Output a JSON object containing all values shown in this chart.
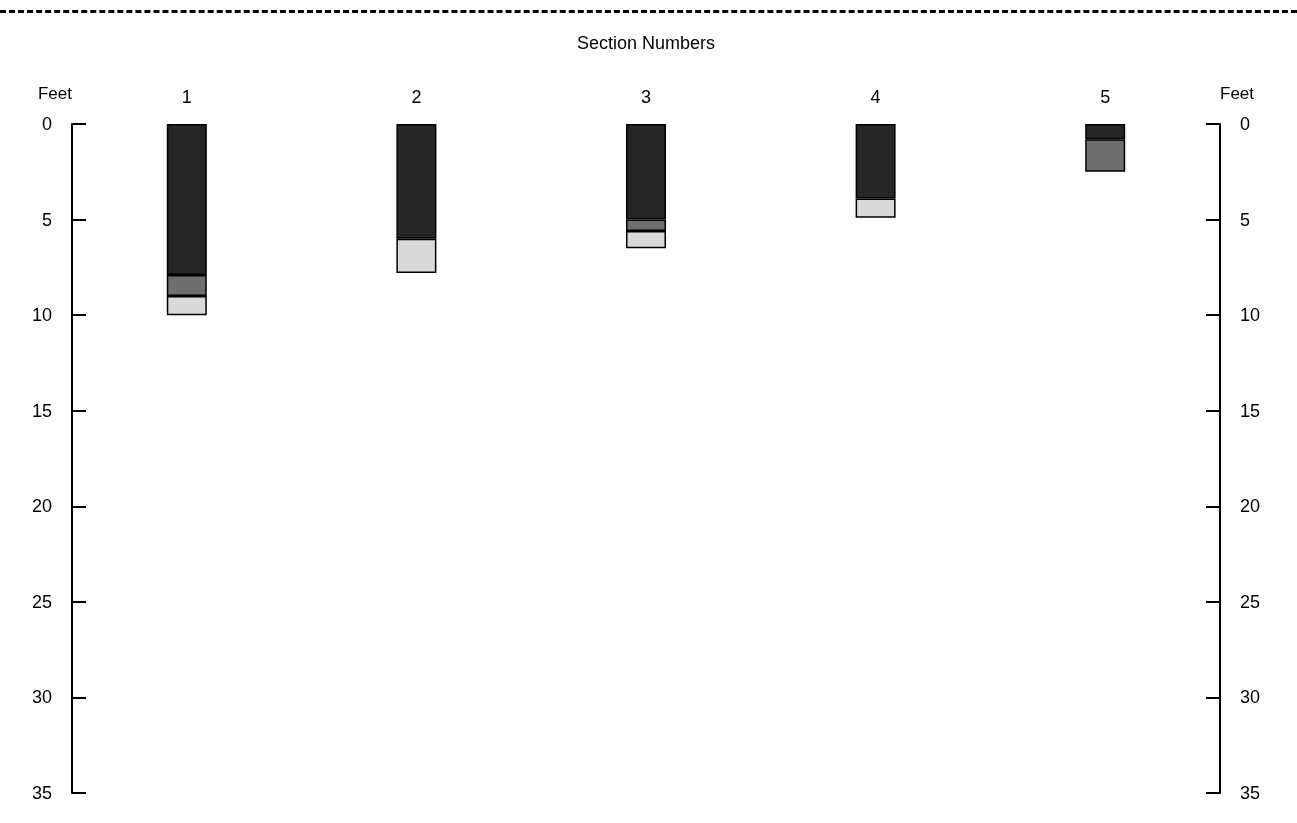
{
  "chart_data": {
    "type": "bar",
    "stacked": true,
    "xlabel": "Section Numbers",
    "ylabel": "Feet",
    "y2label": "Feet",
    "categories": [
      "1",
      "2",
      "3",
      "4",
      "5"
    ],
    "series": [
      {
        "color": "#262626",
        "values": [
          7.9,
          6.0,
          5.0,
          3.9,
          0.8
        ]
      },
      {
        "color": "#6e6e6e",
        "values": [
          1.1,
          null,
          0.6,
          null,
          1.7
        ]
      },
      {
        "color": "#d9d9d9",
        "values": [
          1.0,
          1.8,
          0.9,
          1.0,
          null
        ]
      }
    ],
    "ylim": [
      35,
      0
    ],
    "yticks": [
      0,
      5,
      10,
      15,
      20,
      25,
      30,
      35
    ],
    "y2lim": [
      35,
      0
    ],
    "y2ticks": [
      0,
      5,
      10,
      15,
      20,
      25,
      30,
      35
    ],
    "grid": false
  }
}
